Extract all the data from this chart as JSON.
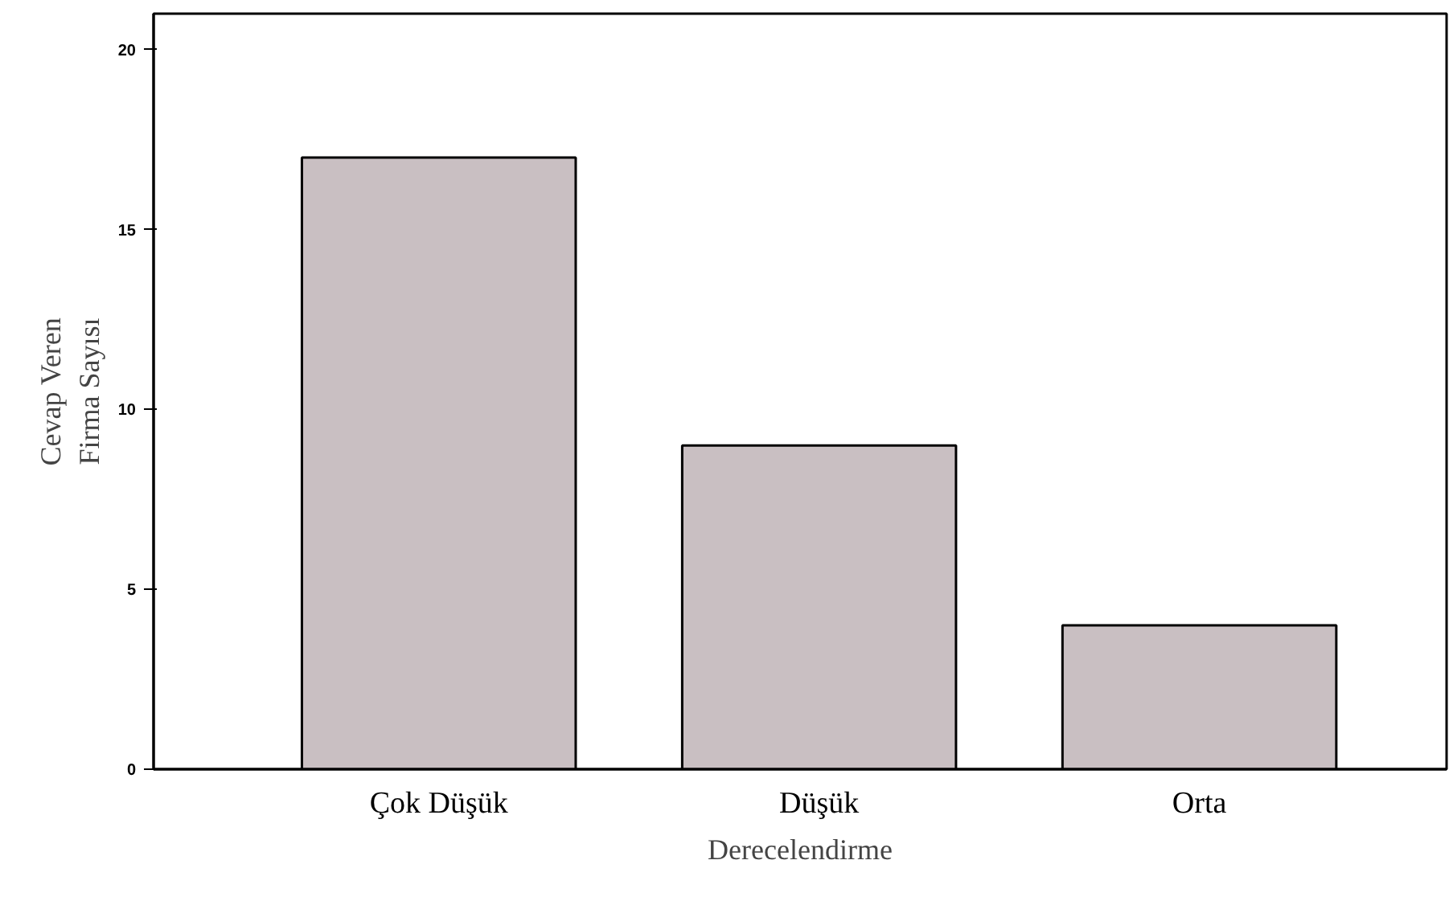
{
  "chart_data": {
    "type": "bar",
    "xlabel": "Derecelendirme",
    "ylabel": "Cevap Veren\nFirma Sayısı",
    "categories": [
      "Çok Düşük",
      "Düşük",
      "Orta"
    ],
    "values": [
      17,
      9,
      4
    ],
    "color": "#c9bfc2",
    "ylim": [
      0,
      21
    ],
    "yticks": [
      0,
      5,
      10,
      15,
      20
    ],
    "grid": false
  }
}
